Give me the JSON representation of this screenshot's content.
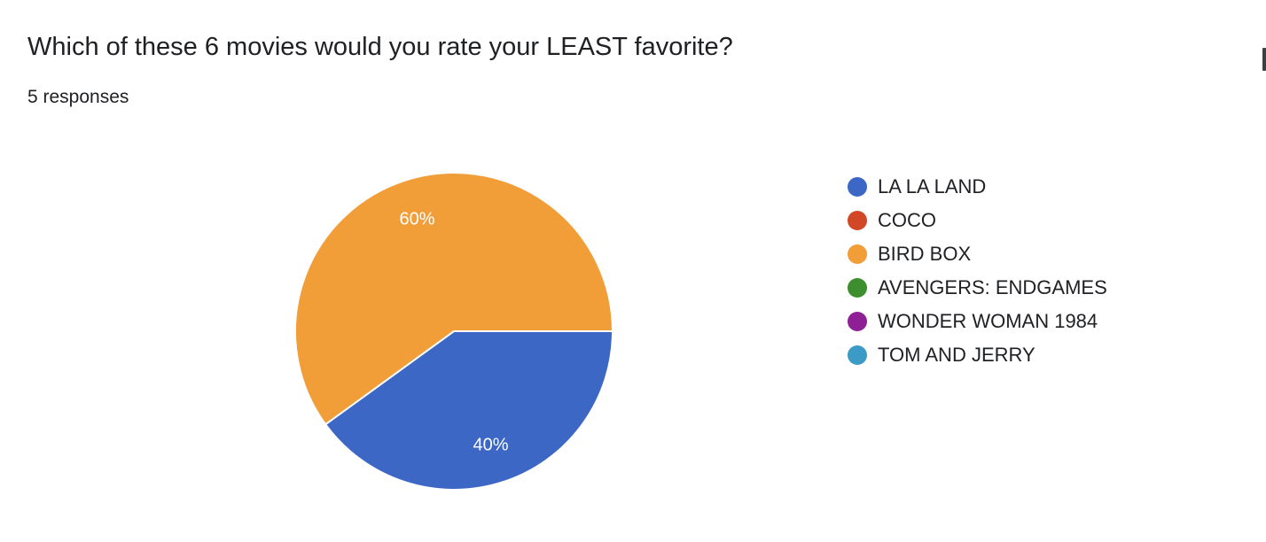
{
  "question": {
    "title": "Which of these 6 movies would you rate your LEAST favorite?",
    "responses": "5 responses"
  },
  "chart_data": {
    "type": "pie",
    "title": "",
    "legend_position": "right",
    "slices": [
      {
        "label": "LA LA LAND",
        "value": 40,
        "display": "40%",
        "color": "#3c67c5"
      },
      {
        "label": "COCO",
        "value": 0,
        "display": "",
        "color": "#d24726"
      },
      {
        "label": "BIRD BOX",
        "value": 60,
        "display": "60%",
        "color": "#f29e38"
      },
      {
        "label": "AVENGERS: ENDGAMES",
        "value": 0,
        "display": "",
        "color": "#3c8e2f"
      },
      {
        "label": "WONDER WOMAN 1984",
        "value": 0,
        "display": "",
        "color": "#8e1f94"
      },
      {
        "label": "TOM AND JERRY",
        "value": 0,
        "display": "",
        "color": "#3b9ac6"
      }
    ]
  }
}
